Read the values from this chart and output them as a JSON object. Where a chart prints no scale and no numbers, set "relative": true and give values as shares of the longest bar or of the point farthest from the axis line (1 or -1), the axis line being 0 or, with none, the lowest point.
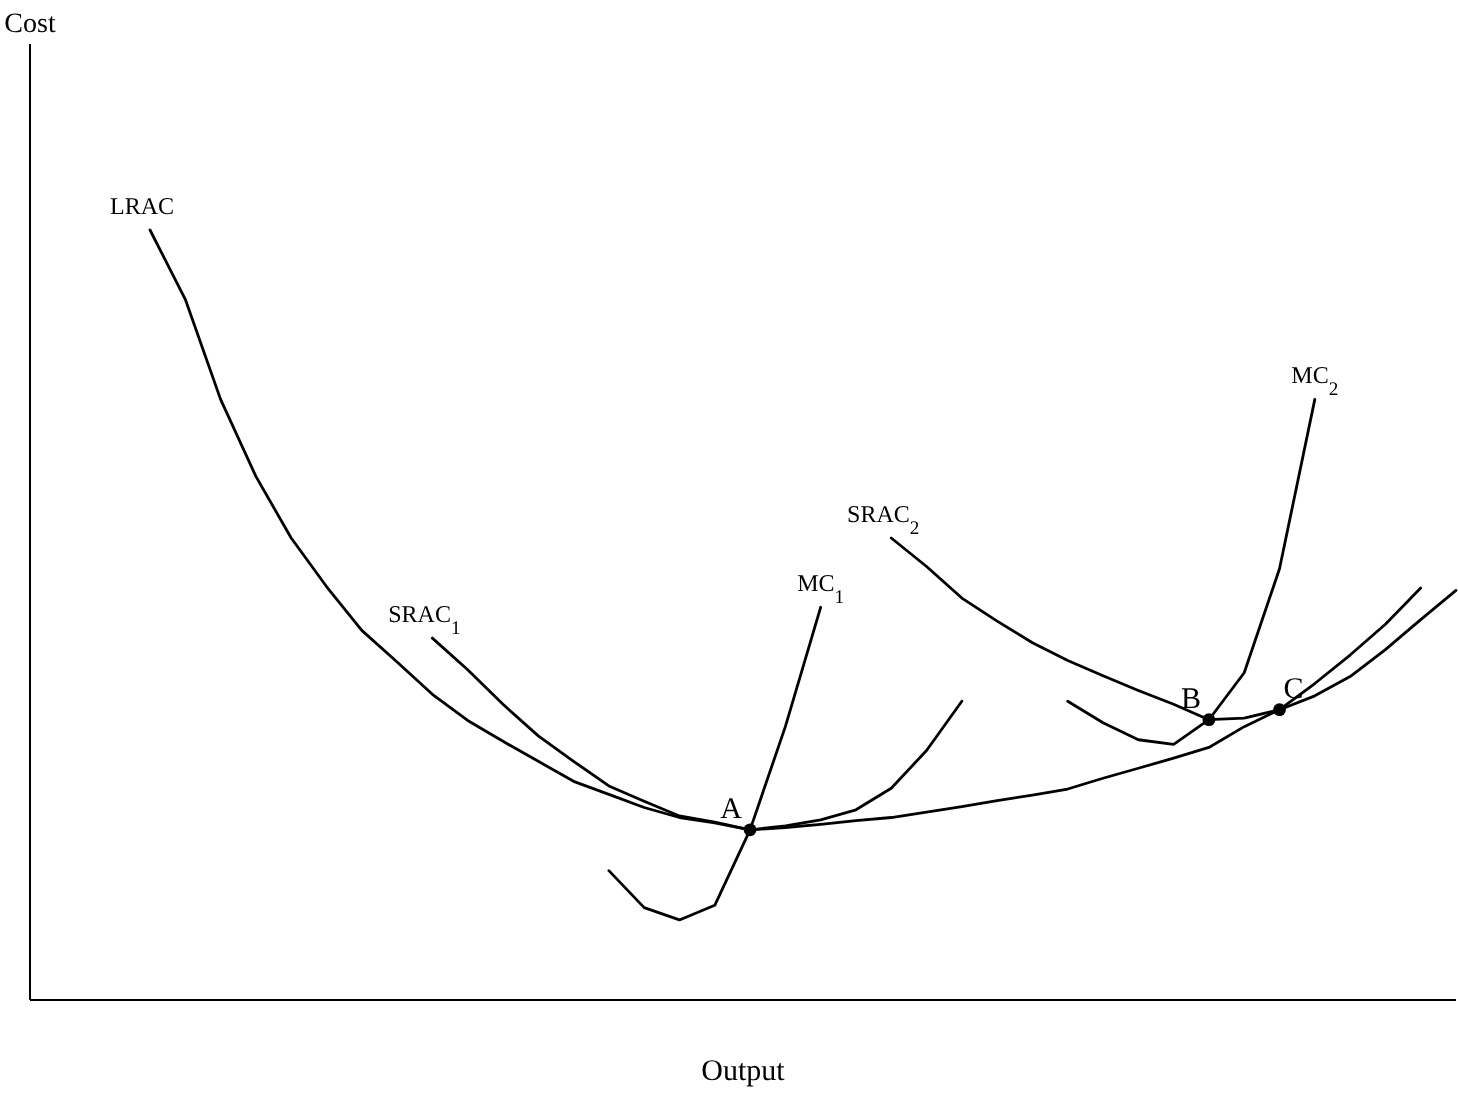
{
  "chart_data": {
    "type": "line",
    "relative": true,
    "xlabel": "Output",
    "categories": [
      null,
      null,
      null,
      null,
      null,
      null,
      null,
      null,
      null,
      null,
      null,
      null,
      null,
      null,
      null,
      null,
      null,
      null,
      null,
      null,
      null,
      null,
      null,
      null,
      null,
      null,
      null,
      null,
      null,
      null,
      null,
      null,
      null,
      null,
      null,
      null,
      null,
      null
    ],
    "series": [
      {
        "name": "LRAC",
        "color": "#000000",
        "values": [
          1.0,
          0.91,
          0.78,
          0.68,
          0.6,
          0.537,
          0.48,
          0.439,
          0.397,
          0.363,
          0.336,
          0.31,
          0.284,
          0.267,
          0.25,
          0.237,
          0.23,
          0.221,
          0.224,
          0.228,
          0.233,
          0.237,
          0.244,
          0.251,
          0.259,
          0.266,
          0.274,
          0.288,
          0.301,
          0.314,
          0.328,
          0.355,
          0.377,
          0.395,
          0.42,
          0.455,
          0.494,
          0.532
        ]
      },
      {
        "name": "SRAC$_{1}$",
        "color": "#000000",
        "values": [
          null,
          null,
          null,
          null,
          null,
          null,
          null,
          null,
          0.47,
          0.429,
          0.384,
          0.343,
          0.31,
          0.278,
          0.258,
          0.239,
          0.231,
          0.221,
          0.226,
          0.234,
          0.247,
          0.275,
          0.324,
          0.388,
          null,
          null,
          null,
          null,
          null,
          null,
          null,
          null,
          null,
          null,
          null,
          null,
          null,
          null
        ]
      },
      {
        "name": "MC$_{1}$",
        "color": "#000000",
        "values": [
          null,
          null,
          null,
          null,
          null,
          null,
          null,
          null,
          null,
          null,
          null,
          null,
          null,
          0.168,
          0.12,
          0.104,
          0.123,
          0.221,
          0.355,
          0.51,
          null,
          null,
          null,
          null,
          null,
          null,
          null,
          null,
          null,
          null,
          null,
          null,
          null,
          null,
          null,
          null,
          null,
          null
        ]
      },
      {
        "name": "SRAC$_{2}$",
        "color": "#000000",
        "values": [
          null,
          null,
          null,
          null,
          null,
          null,
          null,
          null,
          null,
          null,
          null,
          null,
          null,
          null,
          null,
          null,
          null,
          null,
          null,
          null,
          null,
          0.6,
          0.563,
          0.522,
          0.492,
          0.464,
          0.441,
          0.421,
          0.402,
          0.384,
          0.364,
          0.366,
          0.377,
          0.411,
          0.448,
          0.488,
          0.535,
          null
        ]
      },
      {
        "name": "MC$_{2}$",
        "color": "#000000",
        "values": [
          null,
          null,
          null,
          null,
          null,
          null,
          null,
          null,
          null,
          null,
          null,
          null,
          null,
          null,
          null,
          null,
          null,
          null,
          null,
          null,
          null,
          null,
          null,
          null,
          null,
          null,
          0.388,
          0.36,
          0.338,
          0.332,
          0.364,
          0.425,
          0.56,
          0.78,
          null,
          null,
          null,
          null
        ]
      }
    ],
    "annotations": [
      "Cost",
      {
        "text": "A",
        "y": 0.221
      },
      {
        "text": "B",
        "y": 0.364
      },
      {
        "text": "C",
        "y": 0.377
      }
    ]
  }
}
